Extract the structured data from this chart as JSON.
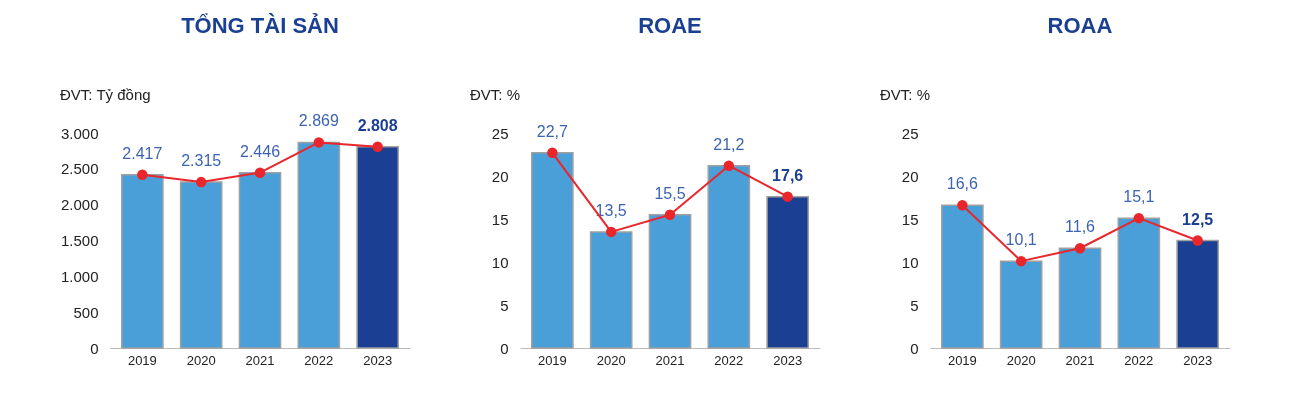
{
  "chart_data": [
    {
      "type": "bar",
      "title": "TỔNG TÀI SẢN",
      "ylabel": "ĐVT: Tỷ đồng",
      "categories": [
        "2019",
        "2020",
        "2021",
        "2022",
        "2023"
      ],
      "ylim": [
        0,
        3000
      ],
      "yticks": [
        {
          "value": 0,
          "label": "0"
        },
        {
          "value": 500,
          "label": "500"
        },
        {
          "value": 1000,
          "label": "1.000"
        },
        {
          "value": 1500,
          "label": "1.500"
        },
        {
          "value": 2000,
          "label": "2.000"
        },
        {
          "value": 2500,
          "label": "2.500"
        },
        {
          "value": 3000,
          "label": "3.000"
        }
      ],
      "grid": false,
      "series": [
        {
          "type": "bar",
          "colors": [
            "#4a9fd8",
            "#4a9fd8",
            "#4a9fd8",
            "#4a9fd8",
            "#1a3f93"
          ],
          "values": [
            2417,
            2315,
            2446,
            2869,
            2808
          ],
          "value_labels": [
            "2.417",
            "2.315",
            "2.446",
            "2.869",
            "2.808"
          ]
        },
        {
          "type": "line",
          "color": "#e8262b",
          "marker": "circle",
          "values": [
            2417,
            2315,
            2446,
            2869,
            2808
          ]
        }
      ]
    },
    {
      "type": "bar",
      "title": "ROAE",
      "ylabel": "ĐVT: %",
      "categories": [
        "2019",
        "2020",
        "2021",
        "2022",
        "2023"
      ],
      "ylim": [
        0,
        25
      ],
      "yticks": [
        0,
        5,
        10,
        15,
        20,
        25
      ],
      "grid": false,
      "series": [
        {
          "type": "bar",
          "colors": [
            "#4a9fd8",
            "#4a9fd8",
            "#4a9fd8",
            "#4a9fd8",
            "#1a3f93"
          ],
          "values": [
            22.7,
            13.5,
            15.5,
            21.2,
            17.6
          ],
          "value_labels": [
            "22,7",
            "13,5",
            "15,5",
            "21,2",
            "17,6"
          ]
        },
        {
          "type": "line",
          "color": "#e8262b",
          "marker": "circle",
          "values": [
            22.7,
            13.5,
            15.5,
            21.2,
            17.6
          ]
        }
      ]
    },
    {
      "type": "bar",
      "title": "ROAA",
      "ylabel": "ĐVT: %",
      "categories": [
        "2019",
        "2020",
        "2021",
        "2022",
        "2023"
      ],
      "ylim": [
        0,
        25
      ],
      "yticks": [
        0,
        5,
        10,
        15,
        20,
        25
      ],
      "grid": false,
      "series": [
        {
          "type": "bar",
          "colors": [
            "#4a9fd8",
            "#4a9fd8",
            "#4a9fd8",
            "#4a9fd8",
            "#1a3f93"
          ],
          "values": [
            16.6,
            10.1,
            11.6,
            15.1,
            12.5
          ],
          "value_labels": [
            "16,6",
            "10,1",
            "11,6",
            "15,1",
            "12,5"
          ]
        },
        {
          "type": "line",
          "color": "#e8262b",
          "marker": "circle",
          "values": [
            16.6,
            10.1,
            11.6,
            15.1,
            12.5
          ]
        }
      ]
    }
  ]
}
